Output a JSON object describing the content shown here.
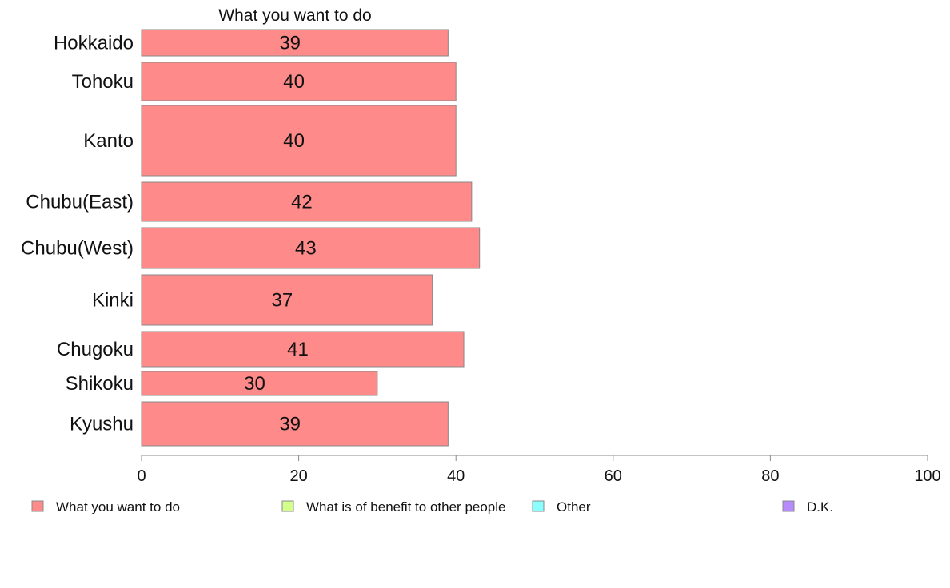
{
  "chart_data": {
    "type": "bar",
    "orientation": "horizontal",
    "title": "What you want to do",
    "categories": [
      "Hokkaido",
      "Tohoku",
      "Kanto",
      "Chubu(East)",
      "Chubu(West)",
      "Kinki",
      "Chugoku",
      "Shikoku",
      "Kyushu"
    ],
    "series": [
      {
        "name": "What you want to do",
        "values": [
          39,
          40,
          40,
          42,
          43,
          37,
          41,
          30,
          39
        ],
        "color": "#ff8a8a"
      }
    ],
    "value_labels": [
      "39",
      "40",
      "40",
      "42",
      "43",
      "37",
      "41",
      "30",
      "39"
    ],
    "xlim": [
      0,
      100
    ],
    "xticks": [
      "0",
      "20",
      "40",
      "60",
      "80",
      "100"
    ],
    "grid": false,
    "legend_position": "bottom",
    "legend": [
      {
        "label": "What you want to do",
        "color": "#ff8a8a"
      },
      {
        "label": "What is of benefit to other people",
        "color": "#d4ff8a"
      },
      {
        "label": "Other",
        "color": "#8affff"
      },
      {
        "label": "D.K.",
        "color": "#b88aff"
      }
    ]
  }
}
